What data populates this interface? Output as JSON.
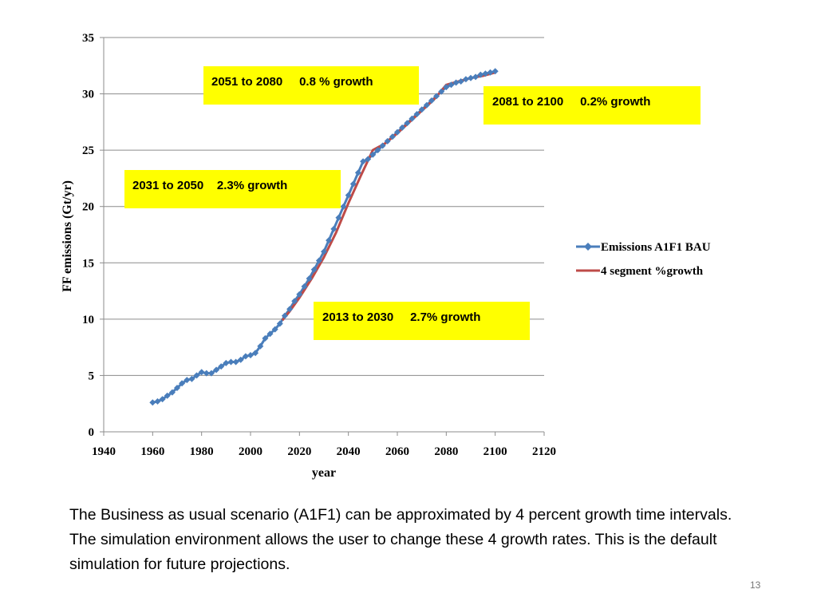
{
  "chart_data": {
    "type": "line",
    "xlabel": "year",
    "ylabel": "FF emissions (Gt/yr)",
    "xlim": [
      1940,
      2120
    ],
    "ylim": [
      0,
      35
    ],
    "xticks": [
      1940,
      1960,
      1980,
      2000,
      2020,
      2040,
      2060,
      2080,
      2100,
      2120
    ],
    "yticks": [
      0,
      5,
      10,
      15,
      20,
      25,
      30,
      35
    ],
    "grid": "horizontal",
    "legend_position": "right",
    "series": [
      {
        "name": "Emissions A1F1 BAU",
        "color": "#4a7ebb",
        "marker": "diamond",
        "x": [
          1960,
          1962,
          1964,
          1966,
          1968,
          1970,
          1972,
          1974,
          1976,
          1978,
          1980,
          1982,
          1984,
          1986,
          1988,
          1990,
          1992,
          1994,
          1996,
          1998,
          2000,
          2002,
          2004,
          2006,
          2008,
          2010,
          2012,
          2014,
          2016,
          2018,
          2020,
          2022,
          2024,
          2026,
          2028,
          2030,
          2032,
          2034,
          2036,
          2038,
          2040,
          2042,
          2044,
          2046,
          2048,
          2050,
          2052,
          2054,
          2056,
          2058,
          2060,
          2062,
          2064,
          2066,
          2068,
          2070,
          2072,
          2074,
          2076,
          2078,
          2080,
          2082,
          2084,
          2086,
          2088,
          2090,
          2092,
          2094,
          2096,
          2098,
          2100
        ],
        "y": [
          2.6,
          2.7,
          2.9,
          3.2,
          3.5,
          3.9,
          4.3,
          4.6,
          4.7,
          5.0,
          5.3,
          5.2,
          5.2,
          5.5,
          5.8,
          6.1,
          6.2,
          6.2,
          6.4,
          6.7,
          6.8,
          7.0,
          7.6,
          8.3,
          8.7,
          9.1,
          9.6,
          10.3,
          10.9,
          11.6,
          12.2,
          12.9,
          13.6,
          14.4,
          15.2,
          16.0,
          17.0,
          18.0,
          19.0,
          20.0,
          21.0,
          22.0,
          23.0,
          24.0,
          24.2,
          24.6,
          25.0,
          25.4,
          25.8,
          26.2,
          26.6,
          27.0,
          27.4,
          27.8,
          28.2,
          28.6,
          29.0,
          29.4,
          29.8,
          30.2,
          30.6,
          30.8,
          31.0,
          31.1,
          31.3,
          31.4,
          31.5,
          31.7,
          31.8,
          31.9,
          32.0
        ]
      },
      {
        "name": "4 segment %growth",
        "color": "#be4b48",
        "x": [
          2013,
          2016,
          2020,
          2025,
          2030,
          2035,
          2040,
          2045,
          2050,
          2055,
          2060,
          2065,
          2070,
          2075,
          2080,
          2085,
          2090,
          2095,
          2100
        ],
        "y": [
          9.9,
          10.7,
          11.9,
          13.6,
          15.5,
          17.7,
          20.3,
          22.7,
          25.0,
          25.6,
          26.5,
          27.5,
          28.5,
          29.5,
          30.8,
          31.1,
          31.4,
          31.6,
          31.9
        ]
      }
    ],
    "annotations": [
      {
        "text": "2051 to 2080     0.8 % growth"
      },
      {
        "text": "2081 to 2100     0.2% growth"
      },
      {
        "text": "2031 to 2050    2.3% growth"
      },
      {
        "text": "2013 to 2030     2.7% growth"
      }
    ]
  },
  "caption": "The Business as usual scenario (A1F1) can be approximated by 4 percent growth time intervals.  The simulation environment allows the user to change these 4 growth rates.  This is the default simulation for future projections.",
  "slide_number": "13"
}
